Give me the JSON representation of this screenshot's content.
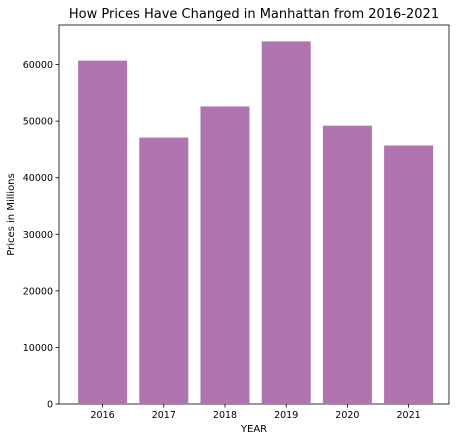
{
  "chart_data": {
    "type": "bar",
    "title": "How Prices Have Changed in Manhattan from 2016-2021",
    "xlabel": "YEAR",
    "ylabel": "Prices in Millions",
    "categories": [
      "2016",
      "2017",
      "2018",
      "2019",
      "2020",
      "2021"
    ],
    "values": [
      60700,
      47100,
      52600,
      64100,
      49200,
      45700
    ],
    "ylim": [
      0,
      67000
    ],
    "yticks": [
      0,
      10000,
      20000,
      30000,
      40000,
      50000,
      60000
    ],
    "bar_color": "#b074b0",
    "grid": false,
    "legend": "none"
  }
}
